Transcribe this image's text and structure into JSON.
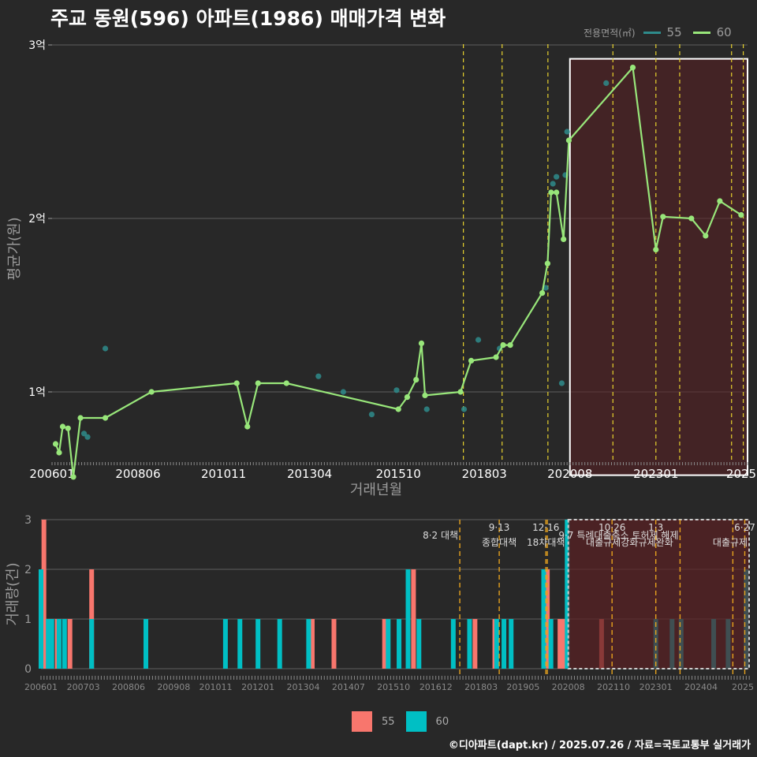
{
  "title": "주교 동원(596) 아파트(1986) 매매가격 변화",
  "legend_top": {
    "title": "전용면적(㎡)",
    "items": [
      {
        "label": "55",
        "color": "#2e8b8b"
      },
      {
        "label": "60",
        "color": "#98e67a"
      }
    ]
  },
  "legend_bottom": {
    "items": [
      {
        "label": "55",
        "color": "#f8766d"
      },
      {
        "label": "60",
        "color": "#00bfc4"
      }
    ]
  },
  "footer": "©디아파트(dapt.kr) / 2025.07.26 / 자료=국토교통부 실거래가",
  "chart_data": [
    {
      "type": "line",
      "xlabel": "거래년월",
      "ylabel": "평균가(원)",
      "ylim": [
        0.6,
        3.05
      ],
      "xlim": [
        2006.0,
        2025.58
      ],
      "yticks": [
        {
          "v": 1,
          "label": "1억"
        },
        {
          "v": 2,
          "label": "2억"
        },
        {
          "v": 3,
          "label": "3억"
        }
      ],
      "xticks": [
        {
          "v": 2006.0,
          "label": "200601"
        },
        {
          "v": 2008.42,
          "label": "200806"
        },
        {
          "v": 2010.83,
          "label": "201011"
        },
        {
          "v": 2013.25,
          "label": "201304"
        },
        {
          "v": 2015.75,
          "label": "201510"
        },
        {
          "v": 2018.17,
          "label": "201803"
        },
        {
          "v": 2020.58,
          "label": "202008"
        },
        {
          "v": 2023.0,
          "label": "202301"
        },
        {
          "v": 2025.5,
          "label": "2025"
        }
      ],
      "vlines": [
        2017.58,
        2018.67,
        2019.96,
        2021.79,
        2023.0,
        2023.67,
        2025.13,
        2025.46
      ],
      "highlight": {
        "x": [
          2020.58,
          2025.58
        ],
        "y": [
          0.52,
          2.92
        ]
      },
      "series": [
        {
          "name": "55",
          "color": "#2e8b8b",
          "points": [
            [
              2006.9,
              0.76
            ],
            [
              2007.0,
              0.74
            ],
            [
              2007.5,
              1.25
            ],
            [
              2013.5,
              1.09
            ],
            [
              2014.2,
              1.0
            ],
            [
              2015.0,
              0.87
            ],
            [
              2015.7,
              1.01
            ],
            [
              2016.55,
              0.9
            ],
            [
              2017.6,
              0.9
            ],
            [
              2018.0,
              1.3
            ],
            [
              2018.6,
              1.25
            ],
            [
              2019.9,
              1.6
            ],
            [
              2020.1,
              2.2
            ],
            [
              2020.2,
              2.24
            ],
            [
              2020.35,
              1.05
            ],
            [
              2020.45,
              2.25
            ],
            [
              2020.5,
              2.5
            ],
            [
              2021.6,
              2.78
            ]
          ]
        },
        {
          "name": "60",
          "color": "#98e67a",
          "points": [
            [
              2006.1,
              0.7
            ],
            [
              2006.2,
              0.65
            ],
            [
              2006.3,
              0.8
            ],
            [
              2006.45,
              0.79
            ],
            [
              2006.6,
              0.51
            ],
            [
              2006.8,
              0.85
            ],
            [
              2007.5,
              0.85
            ],
            [
              2008.8,
              1.0
            ],
            [
              2011.2,
              1.05
            ],
            [
              2011.5,
              0.8
            ],
            [
              2011.8,
              1.05
            ],
            [
              2012.6,
              1.05
            ],
            [
              2015.75,
              0.9
            ],
            [
              2016.0,
              0.97
            ],
            [
              2016.25,
              1.07
            ],
            [
              2016.4,
              1.28
            ],
            [
              2016.5,
              0.98
            ],
            [
              2017.5,
              1.0
            ],
            [
              2017.8,
              1.18
            ],
            [
              2018.5,
              1.2
            ],
            [
              2018.7,
              1.27
            ],
            [
              2018.9,
              1.27
            ],
            [
              2019.8,
              1.57
            ],
            [
              2019.95,
              1.74
            ],
            [
              2020.05,
              2.15
            ],
            [
              2020.2,
              2.15
            ],
            [
              2020.4,
              1.88
            ],
            [
              2020.55,
              2.45
            ],
            [
              2022.35,
              2.87
            ],
            [
              2023.0,
              1.82
            ],
            [
              2023.2,
              2.01
            ],
            [
              2024.0,
              2.0
            ],
            [
              2024.4,
              1.9
            ],
            [
              2024.8,
              2.1
            ],
            [
              2025.4,
              2.02
            ]
          ]
        }
      ]
    },
    {
      "type": "bar",
      "xlabel": "",
      "ylabel": "거래량(건)",
      "ylim": [
        0,
        3
      ],
      "xlim": [
        2006.0,
        2025.58
      ],
      "yticks": [
        {
          "v": 0,
          "label": "0"
        },
        {
          "v": 1,
          "label": "1"
        },
        {
          "v": 2,
          "label": "2"
        },
        {
          "v": 3,
          "label": "3"
        }
      ],
      "xticks": [
        {
          "v": 2006.0,
          "label": "200601"
        },
        {
          "v": 2007.17,
          "label": "200703"
        },
        {
          "v": 2008.42,
          "label": "200806"
        },
        {
          "v": 2009.67,
          "label": "200908"
        },
        {
          "v": 2010.83,
          "label": "201011"
        },
        {
          "v": 2012.0,
          "label": "201201"
        },
        {
          "v": 2013.25,
          "label": "201304"
        },
        {
          "v": 2014.5,
          "label": "201407"
        },
        {
          "v": 2015.75,
          "label": "201510"
        },
        {
          "v": 2016.92,
          "label": "201612"
        },
        {
          "v": 2018.17,
          "label": "201803"
        },
        {
          "v": 2019.33,
          "label": "201905"
        },
        {
          "v": 2020.58,
          "label": "202008"
        },
        {
          "v": 2021.83,
          "label": "202110"
        },
        {
          "v": 2023.0,
          "label": "202301"
        },
        {
          "v": 2024.25,
          "label": "202404"
        },
        {
          "v": 2025.5,
          "label": "2025"
        }
      ],
      "vlines": [
        2017.58,
        2018.67,
        2019.96,
        2020.0,
        2021.79,
        2023.0,
        2023.67,
        2025.13,
        2025.46
      ],
      "highlight": {
        "x": [
          2020.58,
          2025.58
        ],
        "y": [
          0,
          3
        ]
      },
      "annotations": [
        {
          "x": 2017.58,
          "date": "8·2",
          "text": "대책",
          "inline": true
        },
        {
          "x": 2018.67,
          "date": "9·13",
          "text": "종합대책"
        },
        {
          "x": 2019.96,
          "date": "12·16",
          "text": "18차대책"
        },
        {
          "x": 2021.79,
          "date": "10·26",
          "text": "대출규제강화"
        },
        {
          "x": 2023.0,
          "date": "1·3",
          "text": "규제완화"
        },
        {
          "x": 2023.67,
          "date": "9·7",
          "text": "특례대출축소 토허제 해제",
          "inline": true
        },
        {
          "x": 2025.46,
          "date": "6·27",
          "text": "대출규제"
        }
      ],
      "series": [
        {
          "name": "55",
          "color": "#f8766d",
          "bars": [
            [
              2006.08,
              3
            ],
            [
              2006.45,
              1
            ],
            [
              2006.8,
              1
            ],
            [
              2007.4,
              2
            ],
            [
              2013.5,
              1
            ],
            [
              2014.1,
              1
            ],
            [
              2015.5,
              1
            ],
            [
              2016.3,
              2
            ],
            [
              2018.0,
              1
            ],
            [
              2018.55,
              1
            ],
            [
              2020.0,
              2
            ],
            [
              2020.35,
              1
            ],
            [
              2020.45,
              1
            ],
            [
              2021.5,
              1
            ]
          ]
        },
        {
          "name": "60",
          "color": "#00bfc4",
          "bars": [
            [
              2006.0,
              2
            ],
            [
              2006.2,
              1
            ],
            [
              2006.3,
              1
            ],
            [
              2006.5,
              1
            ],
            [
              2006.65,
              1
            ],
            [
              2007.4,
              1
            ],
            [
              2008.9,
              1
            ],
            [
              2011.1,
              1
            ],
            [
              2011.5,
              1
            ],
            [
              2012.0,
              1
            ],
            [
              2012.6,
              1
            ],
            [
              2013.4,
              1
            ],
            [
              2015.6,
              1
            ],
            [
              2015.9,
              1
            ],
            [
              2016.15,
              2
            ],
            [
              2016.45,
              1
            ],
            [
              2017.4,
              1
            ],
            [
              2017.85,
              1
            ],
            [
              2018.6,
              1
            ],
            [
              2018.8,
              1
            ],
            [
              2019.0,
              1
            ],
            [
              2019.9,
              2
            ],
            [
              2020.1,
              1
            ],
            [
              2020.55,
              3
            ],
            [
              2023.0,
              1
            ],
            [
              2023.45,
              1
            ],
            [
              2023.7,
              1
            ],
            [
              2024.6,
              1
            ],
            [
              2025.0,
              1
            ],
            [
              2025.5,
              2
            ]
          ]
        }
      ]
    }
  ]
}
